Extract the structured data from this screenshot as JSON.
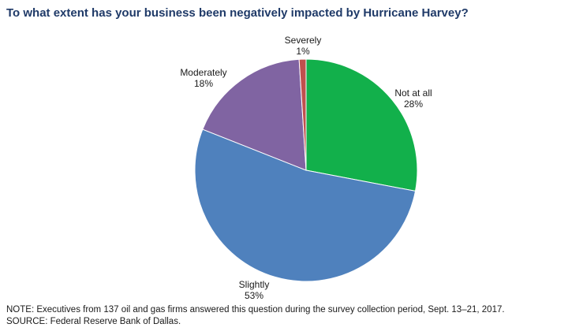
{
  "chart_data": {
    "type": "pie",
    "title": "To what extent has your business been negatively impacted by Hurricane Harvey?",
    "slices": [
      {
        "label": "Not at all",
        "value": 28,
        "value_label": "28%",
        "color": "#12b04b"
      },
      {
        "label": "Slightly",
        "value": 53,
        "value_label": "53%",
        "color": "#4f81bd"
      },
      {
        "label": "Moderately",
        "value": 18,
        "value_label": "18%",
        "color": "#8064a2"
      },
      {
        "label": "Severely",
        "value": 1,
        "value_label": "1%",
        "color": "#c0504d"
      }
    ],
    "start": "12 o'clock",
    "direction": "clockwise"
  },
  "notes": {
    "note": "NOTE: Executives from 137 oil and gas firms answered this question during the survey collection period, Sept. 13–21, 2017.",
    "source": "SOURCE: Federal Reserve Bank of Dallas."
  }
}
